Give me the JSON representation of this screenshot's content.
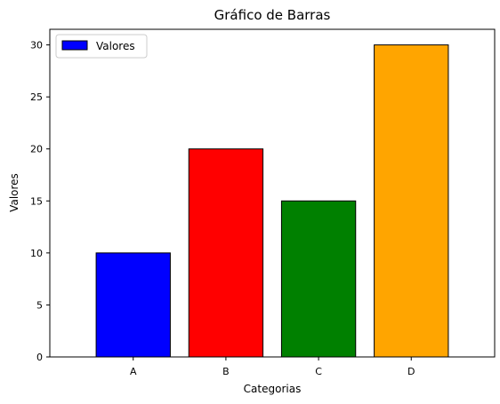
{
  "chart_data": {
    "type": "bar",
    "title": "Gráfico de Barras",
    "xlabel": "Categorias",
    "ylabel": "Valores",
    "categories": [
      "A",
      "B",
      "C",
      "D"
    ],
    "series": [
      {
        "name": "Valores",
        "values": [
          10,
          20,
          15,
          30
        ]
      }
    ],
    "bar_colors": [
      "#0000ff",
      "#ff0000",
      "#008000",
      "#ffa500"
    ],
    "edge_color": "#000000",
    "ylim": [
      0,
      31.5
    ],
    "yticks": [
      0,
      5,
      10,
      15,
      20,
      25,
      30
    ],
    "grid": false,
    "legend": {
      "position": "top-left",
      "entries": [
        "Valores"
      ],
      "swatch_color": "#0000ff"
    }
  }
}
